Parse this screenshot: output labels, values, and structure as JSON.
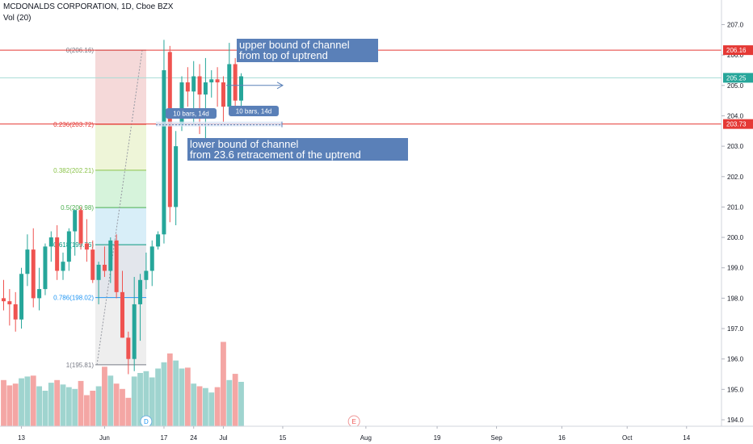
{
  "header": {
    "title": "MCDONALDS CORPORATION, 1D, Cboe BZX",
    "volume_label": "Vol (20)"
  },
  "colors": {
    "up": "#26a69a",
    "down": "#ef5350",
    "up_vol": "#9fd4cf",
    "down_vol": "#f4a6a4",
    "annotation_bg": "#5a80b8",
    "hline": "#e53935",
    "current_price": "#26a69a"
  },
  "chart_data": {
    "type": "candlestick",
    "title": "MCDONALDS CORPORATION, 1D, Cboe BZX",
    "price_axis": {
      "min": 193.8,
      "max": 207.5,
      "ticks": [
        194.0,
        195.0,
        196.0,
        197.0,
        198.0,
        199.0,
        200.0,
        201.0,
        202.0,
        203.0,
        204.0,
        205.0,
        206.0,
        207.0
      ]
    },
    "time_axis": {
      "labels": [
        {
          "text": "13",
          "bar": 3
        },
        {
          "text": "Jun",
          "bar": 17
        },
        {
          "text": "17",
          "bar": 27
        },
        {
          "text": "24",
          "bar": 32
        },
        {
          "text": "Jul",
          "bar": 37
        },
        {
          "text": "15",
          "bar": 47
        },
        {
          "text": "Aug",
          "bar": 61
        },
        {
          "text": "19",
          "bar": 73
        },
        {
          "text": "Sep",
          "bar": 83
        },
        {
          "text": "16",
          "bar": 94
        },
        {
          "text": "Oct",
          "bar": 105
        },
        {
          "text": "14",
          "bar": 115
        }
      ]
    },
    "candles": [
      {
        "o": 198.0,
        "h": 198.6,
        "l": 197.6,
        "c": 197.9
      },
      {
        "o": 197.9,
        "h": 198.3,
        "l": 197.1,
        "c": 197.8
      },
      {
        "o": 197.8,
        "h": 198.2,
        "l": 196.9,
        "c": 197.3
      },
      {
        "o": 197.3,
        "h": 199.0,
        "l": 197.0,
        "c": 198.8
      },
      {
        "o": 198.8,
        "h": 200.1,
        "l": 198.4,
        "c": 199.6
      },
      {
        "o": 199.6,
        "h": 200.3,
        "l": 197.7,
        "c": 198.0
      },
      {
        "o": 198.0,
        "h": 199.0,
        "l": 197.6,
        "c": 198.3
      },
      {
        "o": 198.3,
        "h": 199.8,
        "l": 198.1,
        "c": 199.7
      },
      {
        "o": 199.7,
        "h": 200.2,
        "l": 199.2,
        "c": 200.0
      },
      {
        "o": 200.0,
        "h": 200.4,
        "l": 198.6,
        "c": 198.9
      },
      {
        "o": 198.9,
        "h": 199.5,
        "l": 198.6,
        "c": 199.2
      },
      {
        "o": 199.2,
        "h": 200.3,
        "l": 198.9,
        "c": 200.2
      },
      {
        "o": 200.2,
        "h": 200.9,
        "l": 199.4,
        "c": 200.9
      },
      {
        "o": 200.9,
        "h": 201.0,
        "l": 199.6,
        "c": 199.8
      },
      {
        "o": 199.8,
        "h": 200.6,
        "l": 199.2,
        "c": 199.6
      },
      {
        "o": 199.6,
        "h": 199.9,
        "l": 198.5,
        "c": 198.6
      },
      {
        "o": 198.6,
        "h": 199.2,
        "l": 197.8,
        "c": 199.1
      },
      {
        "o": 199.1,
        "h": 199.7,
        "l": 198.7,
        "c": 198.9
      },
      {
        "o": 198.9,
        "h": 200.0,
        "l": 198.5,
        "c": 199.9
      },
      {
        "o": 199.9,
        "h": 200.1,
        "l": 198.0,
        "c": 198.2
      },
      {
        "o": 198.2,
        "h": 198.9,
        "l": 196.7,
        "c": 196.7
      },
      {
        "o": 196.7,
        "h": 196.9,
        "l": 195.5,
        "c": 196.0
      },
      {
        "o": 196.0,
        "h": 198.7,
        "l": 195.6,
        "c": 197.8
      },
      {
        "o": 197.8,
        "h": 198.8,
        "l": 196.6,
        "c": 198.6
      },
      {
        "o": 198.6,
        "h": 199.5,
        "l": 198.3,
        "c": 198.9
      },
      {
        "o": 198.9,
        "h": 199.9,
        "l": 198.4,
        "c": 199.7
      },
      {
        "o": 199.7,
        "h": 200.2,
        "l": 199.6,
        "c": 200.1
      },
      {
        "o": 200.1,
        "h": 206.5,
        "l": 199.8,
        "c": 205.5
      },
      {
        "o": 206.1,
        "h": 206.3,
        "l": 200.5,
        "c": 201.0
      },
      {
        "o": 201.0,
        "h": 203.5,
        "l": 200.4,
        "c": 203.0
      },
      {
        "o": 203.7,
        "h": 205.3,
        "l": 203.5,
        "c": 205.1
      },
      {
        "o": 205.1,
        "h": 205.6,
        "l": 204.3,
        "c": 204.8
      },
      {
        "o": 204.8,
        "h": 205.8,
        "l": 203.7,
        "c": 205.3
      },
      {
        "o": 205.3,
        "h": 205.7,
        "l": 203.4,
        "c": 204.7
      },
      {
        "o": 204.7,
        "h": 205.9,
        "l": 203.1,
        "c": 205.1
      },
      {
        "o": 205.1,
        "h": 205.5,
        "l": 204.6,
        "c": 205.2
      },
      {
        "o": 205.2,
        "h": 205.6,
        "l": 204.3,
        "c": 205.1
      },
      {
        "o": 205.1,
        "h": 205.3,
        "l": 203.8,
        "c": 204.3
      },
      {
        "o": 204.3,
        "h": 206.4,
        "l": 204.2,
        "c": 205.7
      },
      {
        "o": 205.7,
        "h": 205.9,
        "l": 204.3,
        "c": 204.5
      },
      {
        "o": 204.5,
        "h": 205.4,
        "l": 204.2,
        "c": 205.3
      }
    ],
    "volume_relative": [
      0.52,
      0.46,
      0.48,
      0.54,
      0.56,
      0.57,
      0.45,
      0.4,
      0.49,
      0.52,
      0.47,
      0.44,
      0.42,
      0.51,
      0.35,
      0.4,
      0.45,
      0.67,
      0.57,
      0.48,
      0.42,
      0.32,
      0.56,
      0.6,
      0.62,
      0.55,
      0.65,
      0.72,
      0.82,
      0.74,
      0.65,
      0.66,
      0.48,
      0.45,
      0.43,
      0.38,
      0.44,
      0.95,
      0.52,
      0.59,
      0.5
    ],
    "fib_levels": [
      {
        "label": "0(206.16)",
        "ratio": 0,
        "price": 206.16,
        "color": "#787b86",
        "fill": "#f5d9d9"
      },
      {
        "label": "0.236(203.72)",
        "ratio": 0.236,
        "price": 203.72,
        "color": "#e53935",
        "fill": "#eef5d8"
      },
      {
        "label": "0.382(202.21)",
        "ratio": 0.382,
        "price": 202.21,
        "color": "#8bc34a",
        "fill": "#d6f3db"
      },
      {
        "label": "0.5(200.98)",
        "ratio": 0.5,
        "price": 200.98,
        "color": "#4caf50",
        "fill": "#d8eef8"
      },
      {
        "label": "0.618(199.76)",
        "ratio": 0.618,
        "price": 199.76,
        "color": "#089981",
        "fill": "#e3e6ec"
      },
      {
        "label": "0.786(198.02)",
        "ratio": 0.786,
        "price": 198.02,
        "color": "#2196f3",
        "fill": "#eeeeee"
      },
      {
        "label": "1(195.81)",
        "ratio": 1,
        "price": 195.81,
        "color": "#787b86",
        "fill": "#ffffff"
      }
    ],
    "horizontal_lines": [
      {
        "price": 206.16,
        "label": "206.16",
        "color": "#e53935"
      },
      {
        "price": 203.73,
        "label": "203.73",
        "color": "#e53935"
      }
    ],
    "current_price": {
      "price": 205.25,
      "label": "205.25"
    },
    "annotations": [
      {
        "lines": [
          "upper bound of channel",
          "from top of uptrend"
        ]
      },
      {
        "lines": [
          "lower bound of channel",
          "from 23.6 retracement of the uptrend"
        ]
      }
    ],
    "range_labels": [
      "10 bars, 14d",
      "10 bars, 14d"
    ],
    "event_markers": [
      {
        "text": "D",
        "bar": 24
      },
      {
        "text": "E",
        "bar": 59
      }
    ]
  }
}
